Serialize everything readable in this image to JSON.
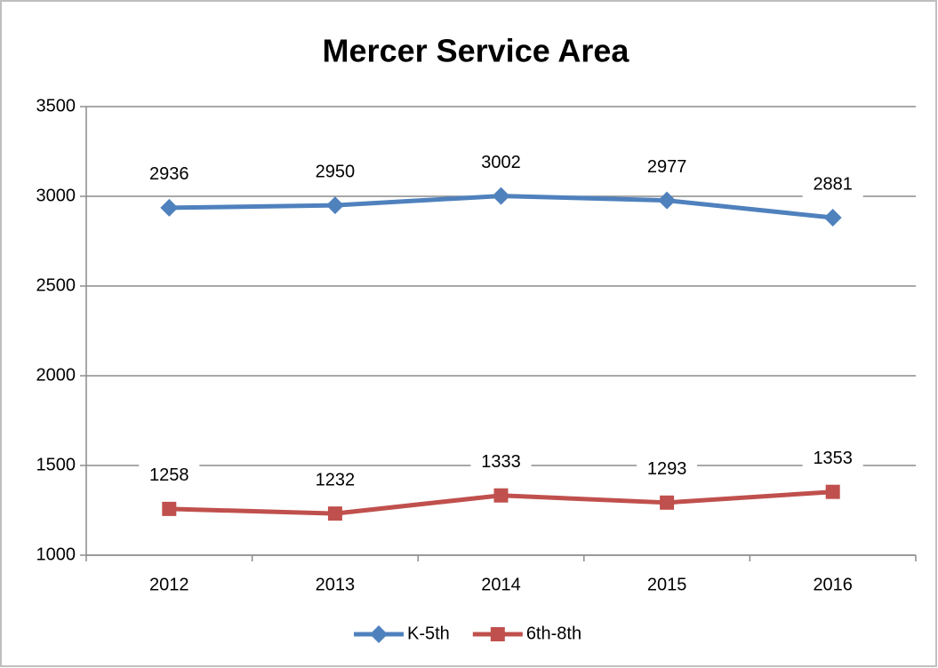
{
  "chart_data": {
    "type": "line",
    "title": "Mercer Service Area",
    "categories": [
      "2012",
      "2013",
      "2014",
      "2015",
      "2016"
    ],
    "series": [
      {
        "name": "K-5th",
        "color": "#4f81bd",
        "marker": "diamond",
        "values": [
          2936,
          2950,
          3002,
          2977,
          2881
        ]
      },
      {
        "name": "6th-8th",
        "color": "#c0504d",
        "marker": "square",
        "values": [
          1258,
          1232,
          1333,
          1293,
          1353
        ]
      }
    ],
    "ylim": [
      1000,
      3500
    ],
    "yticks": [
      1000,
      1500,
      2000,
      2500,
      3000,
      3500
    ],
    "grid": true,
    "legend": "bottom"
  }
}
